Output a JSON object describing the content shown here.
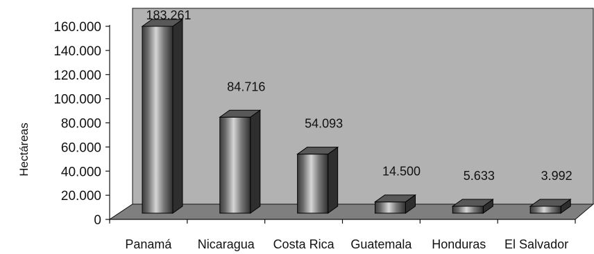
{
  "chart_data": {
    "type": "bar",
    "style": "3d-column",
    "categories": [
      "Panamá",
      "Nicaragua",
      "Costa Rica",
      "Guatemala",
      "Honduras",
      "El Salvador"
    ],
    "values": [
      183261,
      84716,
      54093,
      14500,
      5633,
      3992
    ],
    "data_labels": [
      "183.261",
      "84.716",
      "54.093",
      "14.500",
      "5.633",
      "3.992"
    ],
    "title": "",
    "xlabel": "",
    "ylabel": "Hectáreas",
    "ylim": [
      0,
      160000
    ],
    "yticks": [
      0,
      20000,
      40000,
      60000,
      80000,
      100000,
      120000,
      140000,
      160000
    ],
    "ytick_labels": [
      "0",
      "20.000",
      "40.000",
      "60.000",
      "80.000",
      "100.000",
      "120.000",
      "140.000",
      "160.000"
    ],
    "grid": false,
    "legend": "none",
    "colors": {
      "wall": "#b2b2b2",
      "floor": "#7f7f7f",
      "bar_front_light": "#d0d0d0",
      "bar_front_dark": "#3a3a3a",
      "bar_top": "#585858",
      "bar_side": "#2e2e2e"
    }
  }
}
